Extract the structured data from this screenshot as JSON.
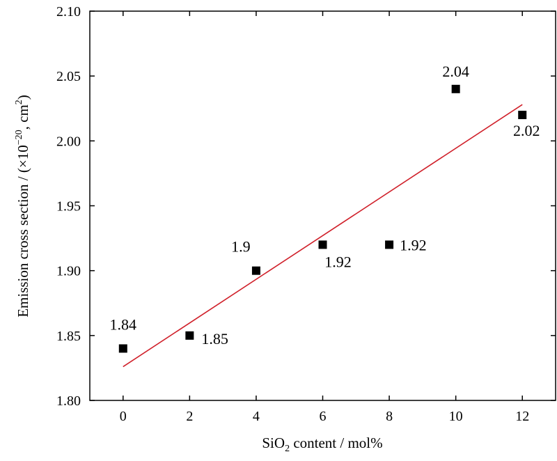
{
  "chart_data": {
    "type": "scatter",
    "title": "",
    "xlabel_parts": {
      "pre": "SiO",
      "sub": "2",
      "post": " content / mol%"
    },
    "ylabel_parts": {
      "pre": "Emission cross section / (×10",
      "sup": "−20",
      "mid": ", cm",
      "sup2": "2",
      "post": ")"
    },
    "xlim": [
      -1,
      13
    ],
    "ylim": [
      1.8,
      2.1
    ],
    "x_ticks": [
      0,
      2,
      4,
      6,
      8,
      10,
      12
    ],
    "x_tick_labels": [
      "0",
      "2",
      "4",
      "6",
      "8",
      "10",
      "12"
    ],
    "y_ticks": [
      1.8,
      1.85,
      1.9,
      1.95,
      2.0,
      2.05,
      2.1
    ],
    "y_tick_labels": [
      "1.80",
      "1.85",
      "1.90",
      "1.95",
      "2.00",
      "2.05",
      "2.10"
    ],
    "grid": false,
    "series": [
      {
        "x": [
          0,
          2,
          4,
          6,
          8,
          10,
          12
        ],
        "y": [
          1.84,
          1.85,
          1.9,
          1.92,
          1.92,
          2.04,
          2.02
        ],
        "data_labels": [
          "1.84",
          "1.85",
          "1.9",
          "1.92",
          "1.92",
          "2.04",
          "2.02"
        ],
        "marker": "square",
        "color": "#000000"
      }
    ],
    "fit_line": {
      "x": [
        0,
        12
      ],
      "y": [
        1.826,
        2.028
      ],
      "color": "#d0202a"
    }
  }
}
